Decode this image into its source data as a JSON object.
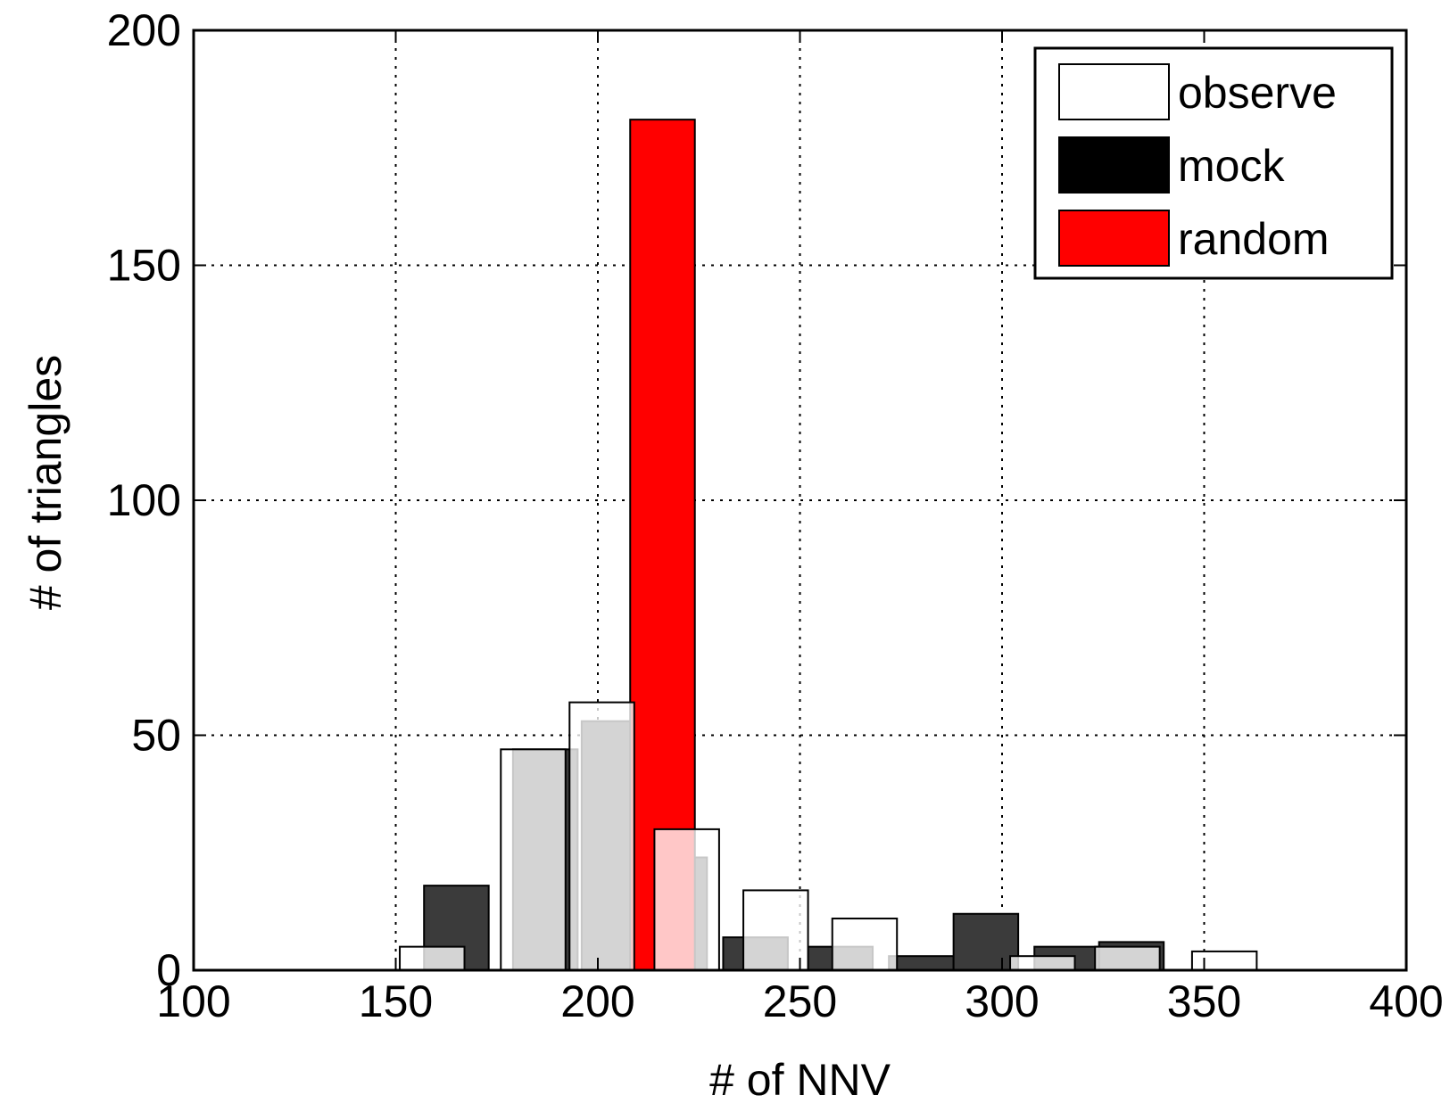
{
  "chart_data": {
    "type": "bar",
    "title": "",
    "xlabel": "# of NNV",
    "ylabel": "# of triangles",
    "xlim": [
      100,
      400
    ],
    "ylim": [
      0,
      200
    ],
    "xticks": [
      "100",
      "150",
      "200",
      "250",
      "300",
      "350",
      "400"
    ],
    "yticks": [
      "0",
      "50",
      "100",
      "150",
      "200"
    ],
    "grid": true,
    "legend_position": "top-right",
    "series": [
      {
        "name": "observe",
        "color": "#ffffff",
        "points": [
          {
            "x": 159,
            "y": 5
          },
          {
            "x": 184,
            "y": 47
          },
          {
            "x": 201,
            "y": 57
          },
          {
            "x": 222,
            "y": 30
          },
          {
            "x": 244,
            "y": 17
          },
          {
            "x": 266,
            "y": 11
          },
          {
            "x": 310,
            "y": 3
          },
          {
            "x": 331,
            "y": 5
          },
          {
            "x": 355,
            "y": 4
          }
        ]
      },
      {
        "name": "mock",
        "color": "#000000",
        "points": [
          {
            "x": 165,
            "y": 18
          },
          {
            "x": 187,
            "y": 47
          },
          {
            "x": 204,
            "y": 53
          },
          {
            "x": 219,
            "y": 24
          },
          {
            "x": 239,
            "y": 7
          },
          {
            "x": 260,
            "y": 5
          },
          {
            "x": 280,
            "y": 3
          },
          {
            "x": 296,
            "y": 12
          },
          {
            "x": 316,
            "y": 5
          },
          {
            "x": 332,
            "y": 6
          }
        ]
      },
      {
        "name": "random",
        "color": "#ff0000",
        "points": [
          {
            "x": 216,
            "y": 181
          }
        ]
      }
    ]
  }
}
